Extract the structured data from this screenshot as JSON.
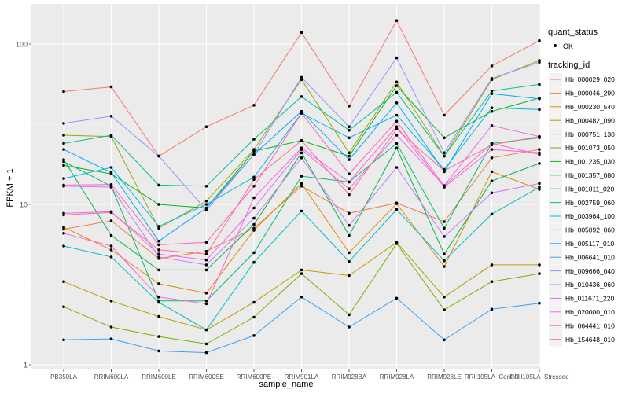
{
  "chart_data": {
    "type": "line",
    "title": "",
    "xlabel": "sample_name",
    "ylabel": "FPKM + 1",
    "y_scale": "log10",
    "ylim": [
      1,
      170
    ],
    "y_ticks": [
      1,
      10,
      100
    ],
    "y_tick_labels": [
      "1",
      "10",
      "100"
    ],
    "grid": true,
    "categories": [
      "PB350LA",
      "RRIM600LA",
      "RRIM600LE",
      "RRIM600SE",
      "RRIM600PE",
      "RRIM901LA",
      "RRIM928BA",
      "RRIM928LA",
      "RRIM928LE",
      "RRII105LA_Control",
      "RRII105LA_Stressed"
    ],
    "legend_position": "right",
    "legend_shape": {
      "title": "quant_status",
      "items": [
        {
          "label": "OK",
          "symbol": "point",
          "color": "#000000"
        }
      ]
    },
    "legend_color_title": "tracking_id",
    "series": [
      {
        "name": "Hb_000029_020",
        "color": "#F8766D",
        "values": [
          50.5,
          54,
          20,
          30.5,
          41.5,
          118,
          41,
          140,
          36,
          73,
          105
        ]
      },
      {
        "name": "Hb_000046_290",
        "color": "#EE8043",
        "values": [
          7,
          7.9,
          4.6,
          5.1,
          7.1,
          13,
          8.8,
          10.2,
          7.8,
          19.5,
          22
        ]
      },
      {
        "name": "Hb_000230_540",
        "color": "#E08B00",
        "values": [
          7.2,
          5.2,
          3.2,
          2.8,
          6.9,
          13.5,
          5,
          10.1,
          4.1,
          16,
          12.4
        ]
      },
      {
        "name": "Hb_000482_090",
        "color": "#BB9D00",
        "values": [
          3.3,
          2.5,
          2,
          1.65,
          2.45,
          3.9,
          3.6,
          5.8,
          2.65,
          4.2,
          4.2
        ]
      },
      {
        "name": "Hb_000751_130",
        "color": "#9EA700",
        "values": [
          27,
          26.5,
          7.1,
          10.5,
          22,
          60,
          21,
          58,
          20,
          60,
          79
        ]
      },
      {
        "name": "Hb_001073_050",
        "color": "#7CAE00",
        "values": [
          2.3,
          1.72,
          1.5,
          1.35,
          1.98,
          3.7,
          2.05,
          5.7,
          2.2,
          3.3,
          3.7
        ]
      },
      {
        "name": "Hb_001235_030",
        "color": "#00B81F",
        "values": [
          17.5,
          15.5,
          10,
          9.5,
          21.5,
          25,
          20,
          55,
          26,
          38,
          46
        ]
      },
      {
        "name": "Hb_001357_080",
        "color": "#00BA42",
        "values": [
          19,
          6.4,
          3.9,
          3.9,
          7.5,
          21,
          6.4,
          22.5,
          4.9,
          14,
          18
        ]
      },
      {
        "name": "Hb_001811_020",
        "color": "#00BE6C",
        "values": [
          18.5,
          13,
          2.5,
          2.5,
          5,
          15,
          13.8,
          24,
          7.1,
          24,
          26
        ]
      },
      {
        "name": "Hb_002759_060",
        "color": "#00C19A",
        "values": [
          24,
          27,
          13.2,
          13,
          25.5,
          47,
          29,
          50,
          20,
          51,
          56
        ]
      },
      {
        "name": "Hb_003964_100",
        "color": "#00BFC4",
        "values": [
          5.5,
          4.7,
          2.45,
          1.65,
          4.35,
          9.1,
          4.4,
          9.3,
          4.45,
          8.7,
          12.8
        ]
      },
      {
        "name": "Hb_005092_060",
        "color": "#00B9E3",
        "values": [
          14.5,
          17,
          7.3,
          10,
          14.8,
          37,
          26,
          36,
          16.5,
          40,
          39
        ]
      },
      {
        "name": "Hb_005117_010",
        "color": "#00A9FF",
        "values": [
          22,
          15.8,
          5.9,
          9.5,
          20.5,
          38,
          19,
          43,
          16,
          49,
          45.5
        ]
      },
      {
        "name": "Hb_006641_010",
        "color": "#35A2FF",
        "values": [
          1.43,
          1.45,
          1.22,
          1.19,
          1.52,
          2.65,
          1.72,
          2.6,
          1.43,
          2.22,
          2.42
        ]
      },
      {
        "name": "Hb_009666_040",
        "color": "#9590FF",
        "values": [
          32,
          35.5,
          20,
          9.2,
          20.5,
          62,
          30.5,
          82,
          21,
          61,
          77
        ]
      },
      {
        "name": "Hb_010436_060",
        "color": "#C77CFF",
        "values": [
          13,
          12.8,
          4.7,
          4.2,
          8.2,
          19.5,
          7.4,
          17,
          6.3,
          11.8,
          13.5
        ]
      },
      {
        "name": "Hb_011671_220",
        "color": "#E76BF3",
        "values": [
          8.8,
          9,
          4.9,
          4.5,
          9.5,
          22,
          12.5,
          27,
          13.1,
          31,
          26.5
        ]
      },
      {
        "name": "Hb_020000_010",
        "color": "#FA62DB",
        "values": [
          6.6,
          5.5,
          2.65,
          2.4,
          11,
          22.5,
          13.8,
          30.5,
          12.8,
          22,
          21
        ]
      },
      {
        "name": "Hb_064441_010",
        "color": "#FF62BC",
        "values": [
          13.2,
          13.3,
          5.6,
          5.8,
          13,
          37,
          15.5,
          33,
          13,
          24,
          20.5
        ]
      },
      {
        "name": "Hb_154648_010",
        "color": "#FF6C91",
        "values": [
          8.6,
          8.9,
          5.2,
          4.9,
          14.3,
          25,
          11.5,
          29.5,
          16.2,
          23.5,
          26.5
        ]
      }
    ]
  }
}
